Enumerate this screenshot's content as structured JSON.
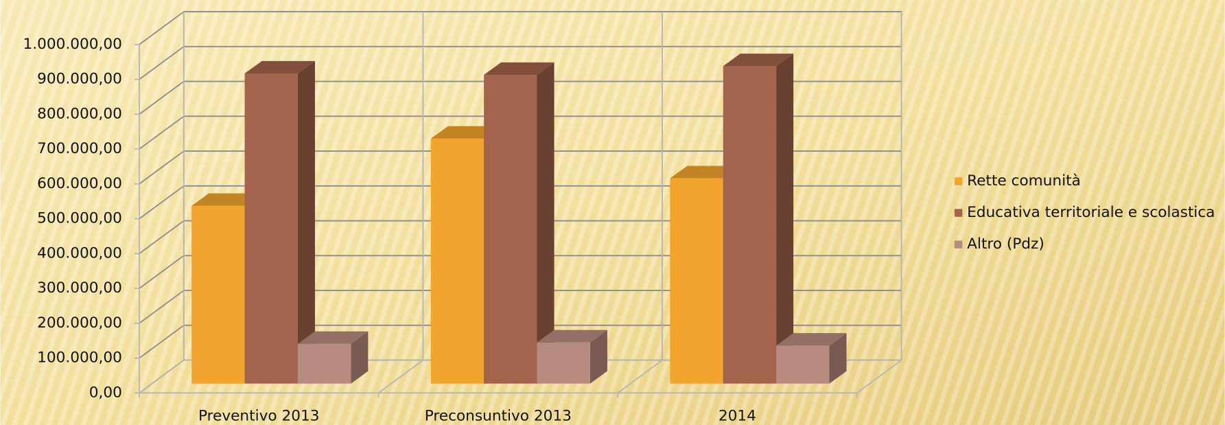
{
  "chart_data": {
    "type": "bar3d",
    "categories": [
      "Preventivo 2013",
      "Preconsuntivo 2013",
      "2014"
    ],
    "series": [
      {
        "name": "Rette comunità",
        "color": "#f2a52e",
        "values": [
          510000,
          703000,
          589000
        ]
      },
      {
        "name": "Educativa territoriale e scolastica",
        "color": "#a3634c",
        "values": [
          890000,
          886000,
          911000
        ]
      },
      {
        "name": "Altro (Pdz)",
        "color": "#b88b80",
        "values": [
          114000,
          118000,
          109000
        ]
      }
    ],
    "ylim": [
      0,
      1000000
    ],
    "yticks": [
      {
        "value": 0,
        "label": "0,00"
      },
      {
        "value": 100000,
        "label": "100.000,00"
      },
      {
        "value": 200000,
        "label": "200.000,00"
      },
      {
        "value": 300000,
        "label": "300.000,00"
      },
      {
        "value": 400000,
        "label": "400.000,00"
      },
      {
        "value": 500000,
        "label": "500.000,00"
      },
      {
        "value": 600000,
        "label": "600.000,00"
      },
      {
        "value": 700000,
        "label": "700.000,00"
      },
      {
        "value": 800000,
        "label": "800.000,00"
      },
      {
        "value": 900000,
        "label": "900.000,00"
      },
      {
        "value": 1000000,
        "label": "1.000.000,00"
      }
    ],
    "grid": true,
    "legend": "right"
  }
}
